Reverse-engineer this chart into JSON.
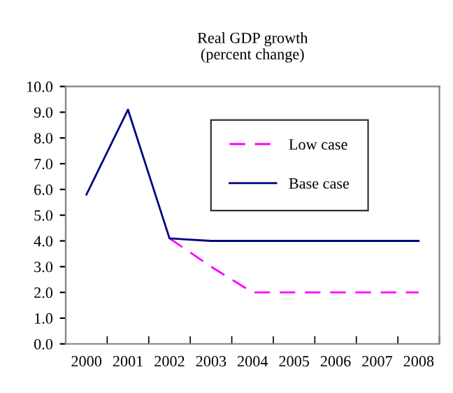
{
  "chart_data": {
    "type": "line",
    "title": "Real GDP growth\n(percent change)",
    "categories": [
      "2000",
      "2001",
      "2002",
      "2003",
      "2004",
      "2005",
      "2006",
      "2007",
      "2008"
    ],
    "series": [
      {
        "name": "Low case",
        "color": "#ff00ff",
        "line_style": "dashed",
        "values": [
          null,
          null,
          4.1,
          3.0,
          2.0,
          2.0,
          2.0,
          2.0,
          2.0
        ]
      },
      {
        "name": "Base case",
        "color": "#000080",
        "line_style": "solid",
        "values": [
          5.8,
          9.1,
          4.1,
          4.0,
          4.0,
          4.0,
          4.0,
          4.0,
          4.0
        ]
      }
    ],
    "ylim": [
      0,
      10
    ],
    "yticks": [
      {
        "value": 0,
        "label": "0.0"
      },
      {
        "value": 1,
        "label": "1.0"
      },
      {
        "value": 2,
        "label": "2.0"
      },
      {
        "value": 3,
        "label": "3.0"
      },
      {
        "value": 4,
        "label": "4.0"
      },
      {
        "value": 5,
        "label": "5.0"
      },
      {
        "value": 6,
        "label": "6.0"
      },
      {
        "value": 7,
        "label": "7.0"
      },
      {
        "value": 8,
        "label": "8.0"
      },
      {
        "value": 9,
        "label": "9.0"
      },
      {
        "value": 10,
        "label": "10.0"
      }
    ],
    "grid": false,
    "legend": "top right",
    "marker": "none"
  }
}
